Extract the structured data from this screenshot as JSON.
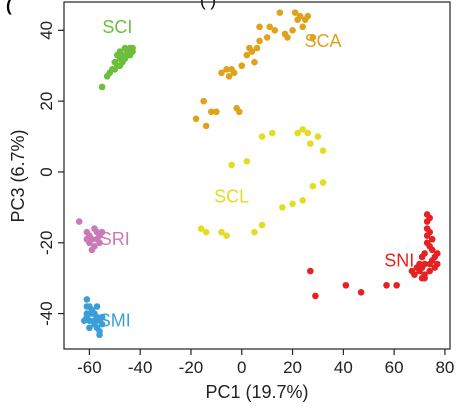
{
  "chart_data": {
    "type": "scatter",
    "panel_label": "(",
    "top_cut_text": "(     )",
    "xlabel": "PC1 (19.7%)",
    "ylabel": "PC3 (6.7%)",
    "xlim": [
      -70,
      82
    ],
    "ylim": [
      -50,
      48
    ],
    "x_ticks": [
      -60,
      -40,
      -20,
      0,
      20,
      40,
      60,
      80
    ],
    "y_ticks": [
      -40,
      -20,
      0,
      20,
      40
    ],
    "grid": false,
    "series": [
      {
        "name": "SCI",
        "color": "#6cbf3c",
        "label_pos": [
          -49,
          41
        ],
        "points": [
          [
            -55,
            24
          ],
          [
            -53,
            27
          ],
          [
            -52,
            28
          ],
          [
            -51,
            29
          ],
          [
            -50,
            31
          ],
          [
            -49,
            30
          ],
          [
            -49,
            33
          ],
          [
            -48,
            34
          ],
          [
            -47,
            31
          ],
          [
            -46,
            32
          ],
          [
            -45,
            34
          ],
          [
            -45,
            33
          ],
          [
            -44,
            35
          ],
          [
            -43,
            35
          ],
          [
            -43,
            34
          ],
          [
            -47,
            33
          ],
          [
            -48,
            30
          ],
          [
            -50,
            29
          ],
          [
            -44,
            33
          ],
          [
            -46,
            35
          ],
          [
            -48,
            32
          ]
        ]
      },
      {
        "name": "SCA",
        "color": "#e0a11b",
        "label_pos": [
          32,
          37
        ],
        "points": [
          [
            -18,
            15
          ],
          [
            -15,
            20
          ],
          [
            -14,
            13
          ],
          [
            -12,
            17
          ],
          [
            -10,
            17
          ],
          [
            -8,
            28
          ],
          [
            -6,
            29
          ],
          [
            -5,
            27
          ],
          [
            -4,
            29
          ],
          [
            -2,
            18
          ],
          [
            -1,
            17
          ],
          [
            2,
            33
          ],
          [
            3,
            35
          ],
          [
            4,
            34
          ],
          [
            6,
            35
          ],
          [
            7,
            41
          ],
          [
            7,
            37
          ],
          [
            10,
            38
          ],
          [
            11,
            41
          ],
          [
            13,
            40
          ],
          [
            15,
            45
          ],
          [
            17,
            39
          ],
          [
            18,
            38
          ],
          [
            20,
            40
          ],
          [
            21,
            45
          ],
          [
            22,
            43
          ],
          [
            23,
            44
          ],
          [
            24,
            41
          ],
          [
            25,
            43
          ],
          [
            26,
            44
          ],
          [
            28,
            38
          ],
          [
            5,
            31
          ],
          [
            -3,
            28
          ],
          [
            0,
            30
          ]
        ]
      },
      {
        "name": "SCL",
        "color": "#e3dc22",
        "label_pos": [
          -4,
          -7
        ],
        "points": [
          [
            -16,
            -16
          ],
          [
            -14,
            -17
          ],
          [
            -8,
            -17
          ],
          [
            -6,
            -18
          ],
          [
            -4,
            2
          ],
          [
            2,
            3
          ],
          [
            5,
            -17
          ],
          [
            8,
            -15
          ],
          [
            12,
            11
          ],
          [
            16,
            -10
          ],
          [
            20,
            -9
          ],
          [
            24,
            12
          ],
          [
            26,
            11
          ],
          [
            27,
            8
          ],
          [
            30,
            10
          ],
          [
            32,
            6
          ],
          [
            32,
            -3
          ],
          [
            28,
            -4
          ],
          [
            22,
            11
          ],
          [
            24,
            -8
          ],
          [
            8,
            10
          ]
        ]
      },
      {
        "name": "SRI",
        "color": "#cc79b8",
        "label_pos": [
          -50,
          -19
        ],
        "points": [
          [
            -64,
            -14
          ],
          [
            -61,
            -17
          ],
          [
            -60,
            -18
          ],
          [
            -60,
            -20
          ],
          [
            -59,
            -19
          ],
          [
            -58,
            -16
          ],
          [
            -58,
            -21
          ],
          [
            -57,
            -17
          ],
          [
            -56,
            -18
          ],
          [
            -56,
            -20
          ],
          [
            -55,
            -17
          ],
          [
            -57,
            -19
          ],
          [
            -59,
            -22
          ],
          [
            -61,
            -19
          ]
        ]
      },
      {
        "name": "SMI",
        "color": "#3b9ed8",
        "label_pos": [
          -50,
          -42
        ],
        "points": [
          [
            -61,
            -36
          ],
          [
            -61,
            -38
          ],
          [
            -61,
            -40
          ],
          [
            -61,
            -41
          ],
          [
            -60,
            -42
          ],
          [
            -59,
            -40
          ],
          [
            -58,
            -43
          ],
          [
            -57,
            -41
          ],
          [
            -56,
            -42
          ],
          [
            -55,
            -43
          ],
          [
            -56,
            -45
          ],
          [
            -57,
            -44
          ],
          [
            -58,
            -42
          ],
          [
            -59,
            -39
          ],
          [
            -60,
            -44
          ],
          [
            -58,
            -40
          ],
          [
            -60,
            -38
          ],
          [
            -62,
            -42
          ],
          [
            -56,
            -46
          ],
          [
            -55,
            -41
          ],
          [
            -57,
            -38
          ]
        ]
      },
      {
        "name": "SNI",
        "color": "#e52222",
        "label_pos": [
          62,
          -25
        ],
        "points": [
          [
            27,
            -28
          ],
          [
            29,
            -35
          ],
          [
            41,
            -32
          ],
          [
            47,
            -34
          ],
          [
            57,
            -32
          ],
          [
            61,
            -32
          ],
          [
            67,
            -28
          ],
          [
            68,
            -29
          ],
          [
            69,
            -27
          ],
          [
            70,
            -28
          ],
          [
            70,
            -26
          ],
          [
            71,
            -24
          ],
          [
            71,
            -27
          ],
          [
            72,
            -23
          ],
          [
            72,
            -29
          ],
          [
            72,
            -30
          ],
          [
            73,
            -12
          ],
          [
            73,
            -14
          ],
          [
            73,
            -16
          ],
          [
            73,
            -18
          ],
          [
            73,
            -20
          ],
          [
            74,
            -21
          ],
          [
            74,
            -26
          ],
          [
            74,
            -28
          ],
          [
            75,
            -22
          ],
          [
            75,
            -25
          ],
          [
            76,
            -27
          ],
          [
            76,
            -24
          ],
          [
            74,
            -13
          ],
          [
            74,
            -17
          ],
          [
            75,
            -19
          ],
          [
            77,
            -23
          ],
          [
            77,
            -26
          ],
          [
            72,
            -26
          ],
          [
            71,
            -30
          ]
        ]
      }
    ]
  }
}
